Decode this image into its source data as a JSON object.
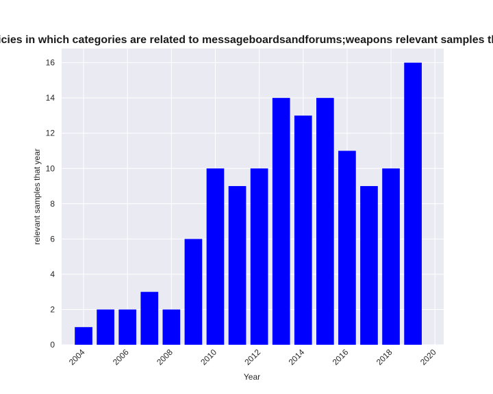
{
  "chart_data": {
    "type": "bar",
    "title": "Number of privacy policies in which categories are related to messageboardsandforums;weapons relevant samples that year in privacy policies",
    "xlabel": "Year",
    "ylabel": "relevant samples that year",
    "x": [
      2004,
      2005,
      2006,
      2007,
      2008,
      2009,
      2010,
      2011,
      2012,
      2013,
      2014,
      2015,
      2016,
      2017,
      2018,
      2019
    ],
    "values": [
      1,
      2,
      2,
      3,
      2,
      6,
      10,
      9,
      10,
      14,
      13,
      14,
      11,
      9,
      10,
      16
    ],
    "xlim": [
      2003,
      2020.4
    ],
    "ylim": [
      0,
      16.8
    ],
    "x_ticks": [
      "2004",
      "2006",
      "2008",
      "2010",
      "2012",
      "2014",
      "2016",
      "2018",
      "2020"
    ],
    "y_ticks": [
      "0",
      "2",
      "4",
      "6",
      "8",
      "10",
      "12",
      "14",
      "16"
    ],
    "grid": true,
    "bar_color": "#0000ff",
    "background_color": "#eaeaf2",
    "grid_color": "#ffffff"
  }
}
